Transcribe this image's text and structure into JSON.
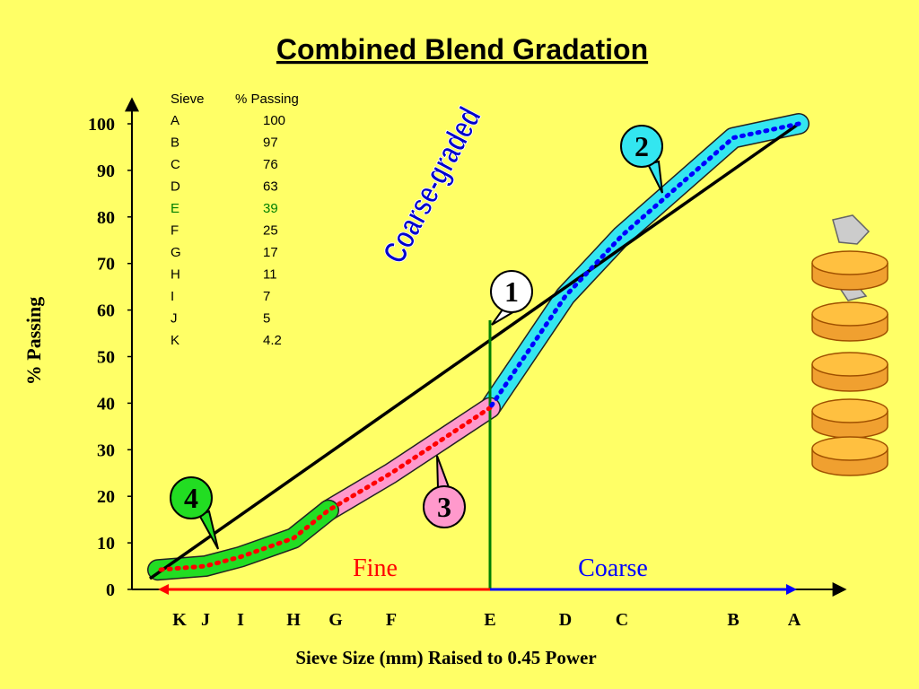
{
  "chart_data": {
    "type": "line",
    "title": "Combined Blend Gradation",
    "ylabel": "%  Passing",
    "xlabel": "Sieve Size (mm) Raised to 0.45 Power",
    "categories": [
      "A",
      "B",
      "C",
      "D",
      "E",
      "F",
      "G",
      "H",
      "I",
      "J",
      "K"
    ],
    "values": [
      100,
      97,
      76,
      63,
      39,
      25,
      17,
      11,
      7,
      5,
      4.2
    ],
    "table_header": [
      "Sieve",
      "% Passing"
    ],
    "ylim": [
      0,
      100
    ],
    "yticks": [
      0,
      10,
      20,
      30,
      40,
      50,
      60,
      70,
      80,
      90,
      100
    ],
    "highlight": 4,
    "fine_color": "#ff0000",
    "coarse_color": "#0000ff",
    "highlight_color": "#008000",
    "annotations": {
      "coarse_graded": "Coarse-graded",
      "fine": "Fine",
      "coarse": "Coarse",
      "callouts": [
        "1",
        "2",
        "3",
        "4"
      ]
    }
  }
}
